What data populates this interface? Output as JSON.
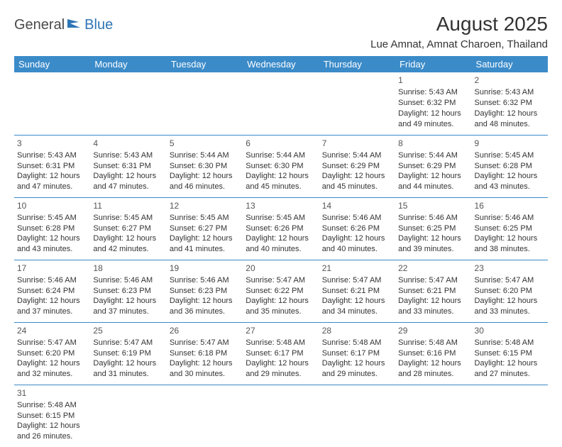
{
  "logo": {
    "general": "General",
    "blue": "Blue"
  },
  "title": "August 2025",
  "location": "Lue Amnat, Amnat Charoen, Thailand",
  "colors": {
    "header_bg": "#3b8bc9",
    "header_text": "#ffffff",
    "cell_border": "#3b8bc9",
    "body_text": "#333333",
    "logo_gray": "#4a4a4a",
    "logo_blue": "#2e75b6",
    "page_bg": "#ffffff"
  },
  "typography": {
    "title_fontsize": 28,
    "location_fontsize": 15,
    "header_fontsize": 13,
    "daynum_fontsize": 12,
    "detail_fontsize": 11
  },
  "weekdays": [
    "Sunday",
    "Monday",
    "Tuesday",
    "Wednesday",
    "Thursday",
    "Friday",
    "Saturday"
  ],
  "grid": {
    "rows": 6,
    "cols": 7,
    "first_day_col": 5
  },
  "days": [
    {
      "n": "1",
      "sunrise": "Sunrise: 5:43 AM",
      "sunset": "Sunset: 6:32 PM",
      "daylight": "Daylight: 12 hours and 49 minutes."
    },
    {
      "n": "2",
      "sunrise": "Sunrise: 5:43 AM",
      "sunset": "Sunset: 6:32 PM",
      "daylight": "Daylight: 12 hours and 48 minutes."
    },
    {
      "n": "3",
      "sunrise": "Sunrise: 5:43 AM",
      "sunset": "Sunset: 6:31 PM",
      "daylight": "Daylight: 12 hours and 47 minutes."
    },
    {
      "n": "4",
      "sunrise": "Sunrise: 5:43 AM",
      "sunset": "Sunset: 6:31 PM",
      "daylight": "Daylight: 12 hours and 47 minutes."
    },
    {
      "n": "5",
      "sunrise": "Sunrise: 5:44 AM",
      "sunset": "Sunset: 6:30 PM",
      "daylight": "Daylight: 12 hours and 46 minutes."
    },
    {
      "n": "6",
      "sunrise": "Sunrise: 5:44 AM",
      "sunset": "Sunset: 6:30 PM",
      "daylight": "Daylight: 12 hours and 45 minutes."
    },
    {
      "n": "7",
      "sunrise": "Sunrise: 5:44 AM",
      "sunset": "Sunset: 6:29 PM",
      "daylight": "Daylight: 12 hours and 45 minutes."
    },
    {
      "n": "8",
      "sunrise": "Sunrise: 5:44 AM",
      "sunset": "Sunset: 6:29 PM",
      "daylight": "Daylight: 12 hours and 44 minutes."
    },
    {
      "n": "9",
      "sunrise": "Sunrise: 5:45 AM",
      "sunset": "Sunset: 6:28 PM",
      "daylight": "Daylight: 12 hours and 43 minutes."
    },
    {
      "n": "10",
      "sunrise": "Sunrise: 5:45 AM",
      "sunset": "Sunset: 6:28 PM",
      "daylight": "Daylight: 12 hours and 43 minutes."
    },
    {
      "n": "11",
      "sunrise": "Sunrise: 5:45 AM",
      "sunset": "Sunset: 6:27 PM",
      "daylight": "Daylight: 12 hours and 42 minutes."
    },
    {
      "n": "12",
      "sunrise": "Sunrise: 5:45 AM",
      "sunset": "Sunset: 6:27 PM",
      "daylight": "Daylight: 12 hours and 41 minutes."
    },
    {
      "n": "13",
      "sunrise": "Sunrise: 5:45 AM",
      "sunset": "Sunset: 6:26 PM",
      "daylight": "Daylight: 12 hours and 40 minutes."
    },
    {
      "n": "14",
      "sunrise": "Sunrise: 5:46 AM",
      "sunset": "Sunset: 6:26 PM",
      "daylight": "Daylight: 12 hours and 40 minutes."
    },
    {
      "n": "15",
      "sunrise": "Sunrise: 5:46 AM",
      "sunset": "Sunset: 6:25 PM",
      "daylight": "Daylight: 12 hours and 39 minutes."
    },
    {
      "n": "16",
      "sunrise": "Sunrise: 5:46 AM",
      "sunset": "Sunset: 6:25 PM",
      "daylight": "Daylight: 12 hours and 38 minutes."
    },
    {
      "n": "17",
      "sunrise": "Sunrise: 5:46 AM",
      "sunset": "Sunset: 6:24 PM",
      "daylight": "Daylight: 12 hours and 37 minutes."
    },
    {
      "n": "18",
      "sunrise": "Sunrise: 5:46 AM",
      "sunset": "Sunset: 6:23 PM",
      "daylight": "Daylight: 12 hours and 37 minutes."
    },
    {
      "n": "19",
      "sunrise": "Sunrise: 5:46 AM",
      "sunset": "Sunset: 6:23 PM",
      "daylight": "Daylight: 12 hours and 36 minutes."
    },
    {
      "n": "20",
      "sunrise": "Sunrise: 5:47 AM",
      "sunset": "Sunset: 6:22 PM",
      "daylight": "Daylight: 12 hours and 35 minutes."
    },
    {
      "n": "21",
      "sunrise": "Sunrise: 5:47 AM",
      "sunset": "Sunset: 6:21 PM",
      "daylight": "Daylight: 12 hours and 34 minutes."
    },
    {
      "n": "22",
      "sunrise": "Sunrise: 5:47 AM",
      "sunset": "Sunset: 6:21 PM",
      "daylight": "Daylight: 12 hours and 33 minutes."
    },
    {
      "n": "23",
      "sunrise": "Sunrise: 5:47 AM",
      "sunset": "Sunset: 6:20 PM",
      "daylight": "Daylight: 12 hours and 33 minutes."
    },
    {
      "n": "24",
      "sunrise": "Sunrise: 5:47 AM",
      "sunset": "Sunset: 6:20 PM",
      "daylight": "Daylight: 12 hours and 32 minutes."
    },
    {
      "n": "25",
      "sunrise": "Sunrise: 5:47 AM",
      "sunset": "Sunset: 6:19 PM",
      "daylight": "Daylight: 12 hours and 31 minutes."
    },
    {
      "n": "26",
      "sunrise": "Sunrise: 5:47 AM",
      "sunset": "Sunset: 6:18 PM",
      "daylight": "Daylight: 12 hours and 30 minutes."
    },
    {
      "n": "27",
      "sunrise": "Sunrise: 5:48 AM",
      "sunset": "Sunset: 6:17 PM",
      "daylight": "Daylight: 12 hours and 29 minutes."
    },
    {
      "n": "28",
      "sunrise": "Sunrise: 5:48 AM",
      "sunset": "Sunset: 6:17 PM",
      "daylight": "Daylight: 12 hours and 29 minutes."
    },
    {
      "n": "29",
      "sunrise": "Sunrise: 5:48 AM",
      "sunset": "Sunset: 6:16 PM",
      "daylight": "Daylight: 12 hours and 28 minutes."
    },
    {
      "n": "30",
      "sunrise": "Sunrise: 5:48 AM",
      "sunset": "Sunset: 6:15 PM",
      "daylight": "Daylight: 12 hours and 27 minutes."
    },
    {
      "n": "31",
      "sunrise": "Sunrise: 5:48 AM",
      "sunset": "Sunset: 6:15 PM",
      "daylight": "Daylight: 12 hours and 26 minutes."
    }
  ]
}
